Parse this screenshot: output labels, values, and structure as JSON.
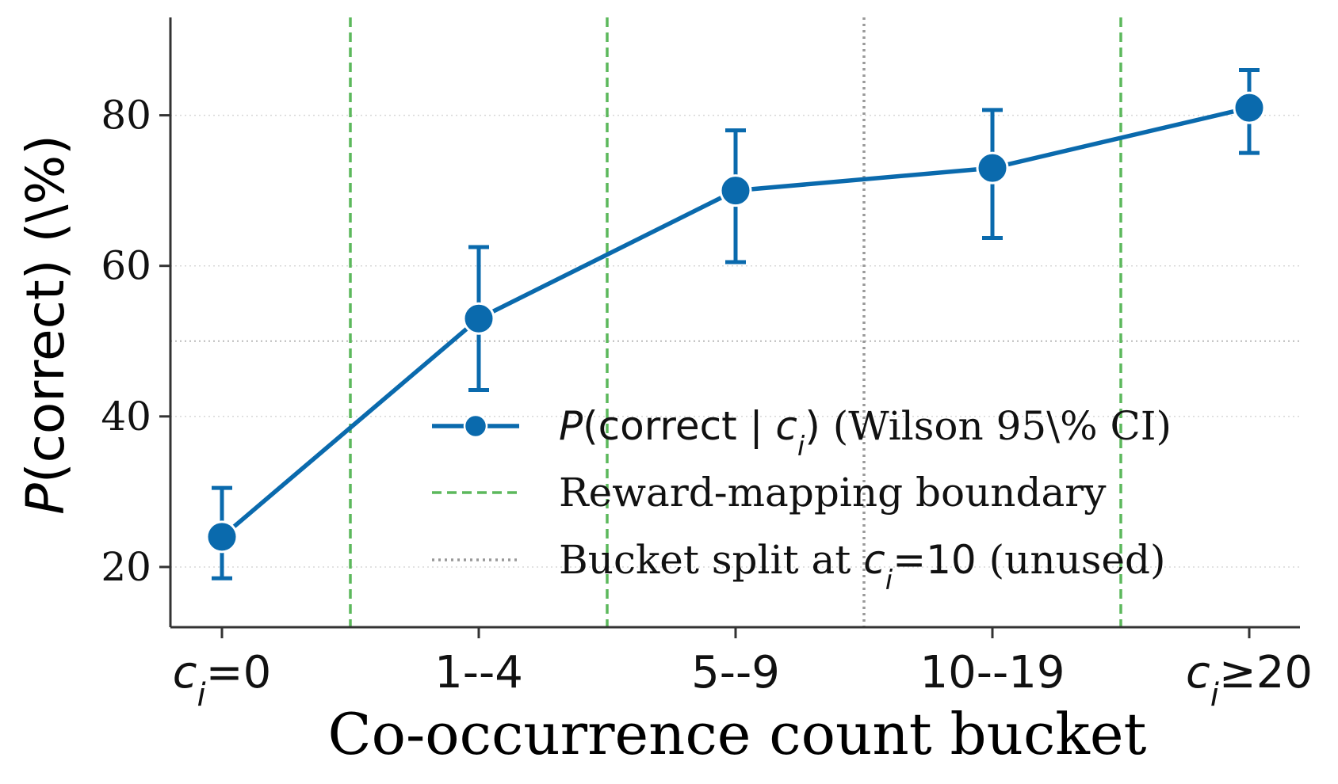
{
  "chart_data": {
    "type": "line",
    "categories": [
      "c_i=0",
      "1--4",
      "5--9",
      "10--19",
      "c_i≥20"
    ],
    "tick_labels": [
      {
        "parts": [
          {
            "t": "c",
            "italic": true
          },
          {
            "t": "i",
            "sub": true,
            "italic": true
          },
          {
            "t": "=0"
          }
        ]
      },
      {
        "parts": [
          {
            "t": "1--4"
          }
        ]
      },
      {
        "parts": [
          {
            "t": "5--9"
          }
        ]
      },
      {
        "parts": [
          {
            "t": "10--19"
          }
        ]
      },
      {
        "parts": [
          {
            "t": "c",
            "italic": true
          },
          {
            "t": "i",
            "sub": true,
            "italic": true
          },
          {
            "t": "≥20"
          }
        ]
      }
    ],
    "series": [
      {
        "values": [
          24,
          53,
          70,
          73,
          81
        ],
        "ci_lower": [
          18.5,
          43.5,
          60.5,
          63.7,
          75
        ],
        "ci_upper": [
          30.5,
          62.5,
          78,
          80.7,
          86
        ]
      }
    ],
    "xlabel": "Co-occurrence count bucket",
    "ylabel": "P(correct) (\\%)",
    "ylim": [
      12,
      93
    ],
    "yticks": [
      20,
      40,
      60,
      80
    ],
    "reference_lines": {
      "reward_mapping_boundaries_x": [
        0.5,
        1.5,
        3.5
      ],
      "bucket_split_x": 2.5,
      "horizontal_y": 50
    },
    "legend": {
      "placement": "lower-right",
      "entries": [
        {
          "label_parts": [
            {
              "t": "P",
              "italic": true
            },
            {
              "t": "(correct | "
            },
            {
              "t": "c",
              "italic": true
            },
            {
              "t": "i",
              "sub": true,
              "italic": true
            },
            {
              "t": ")"
            },
            {
              "t": " (Wilson 95\\% CI)",
              "serif": true
            }
          ]
        },
        {
          "label_parts": [
            {
              "t": "Reward-mapping boundary",
              "serif": true
            }
          ]
        },
        {
          "label_parts": [
            {
              "t": "Bucket split at ",
              "serif": true
            },
            {
              "t": "c",
              "italic": true
            },
            {
              "t": "i",
              "sub": true,
              "italic": true
            },
            {
              "t": "=10"
            },
            {
              "t": " (unused)",
              "serif": true
            }
          ]
        }
      ]
    },
    "colors": {
      "series": "#0a6aad",
      "boundary": "#5cb85c",
      "split": "#999999",
      "grid": "#d8d8d8",
      "axis": "#333333"
    },
    "grid": true
  }
}
